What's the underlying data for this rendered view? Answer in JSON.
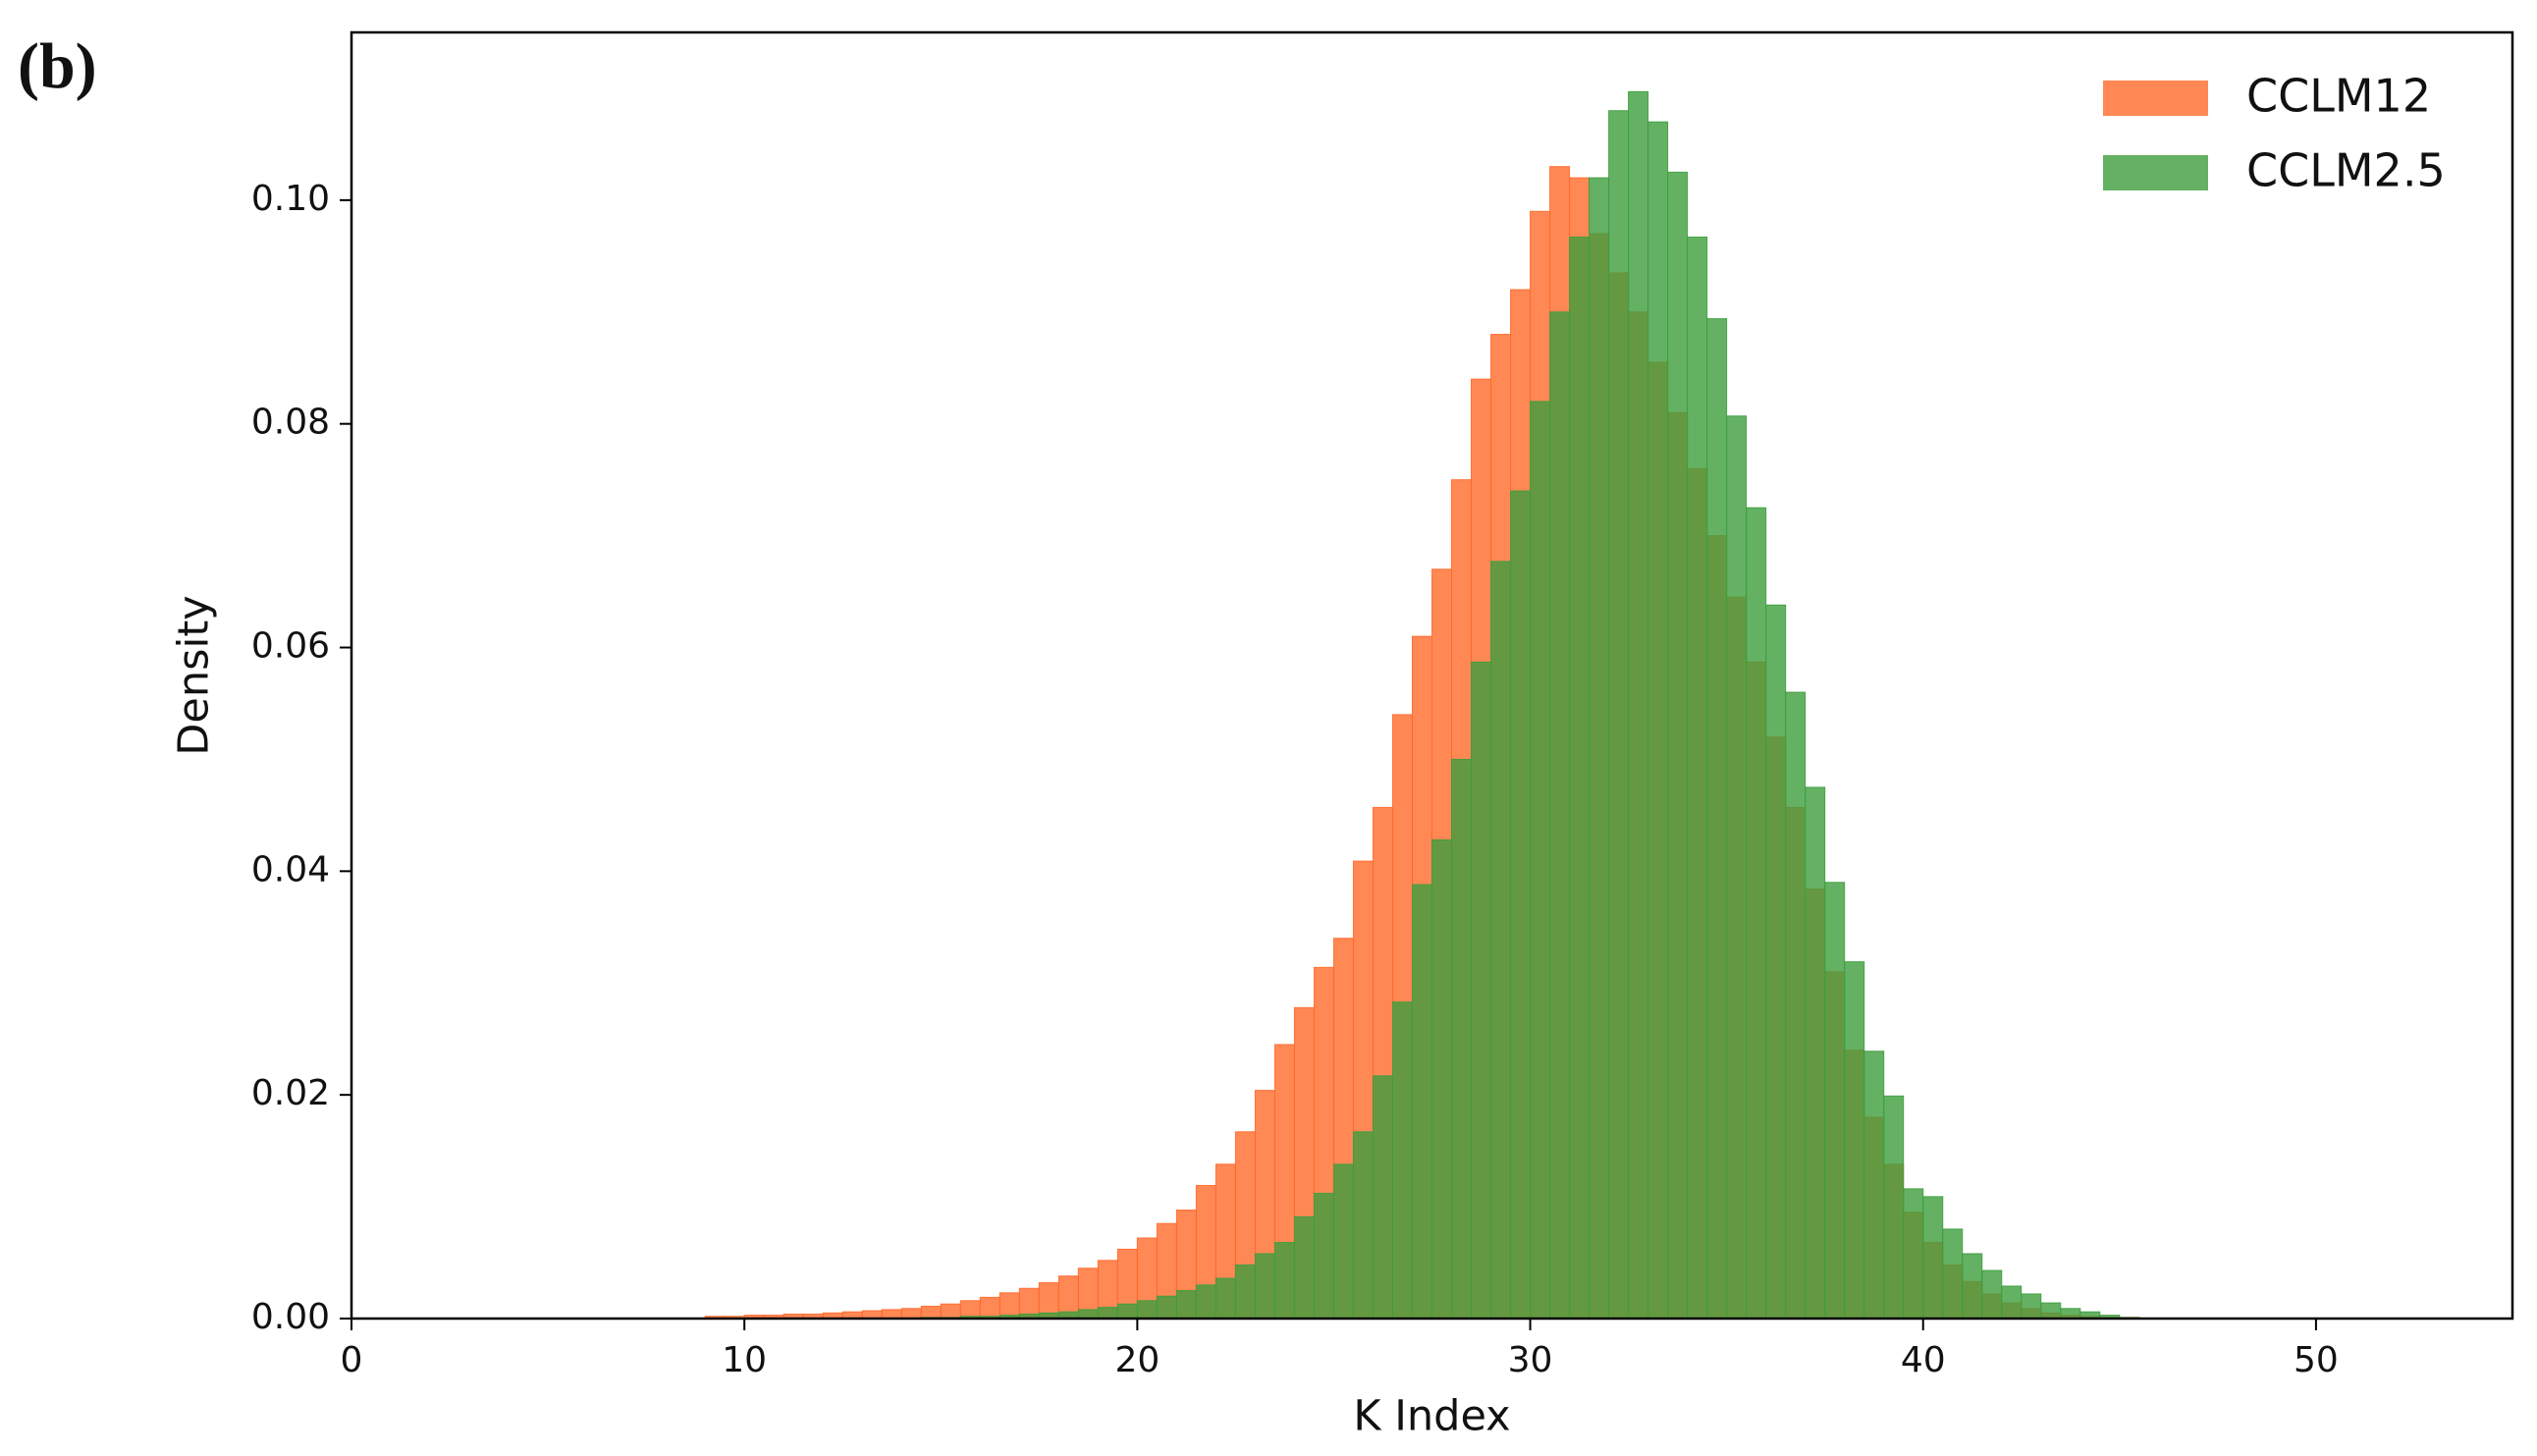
{
  "panel_label": "(b)",
  "chart_data": {
    "type": "histogram",
    "xlabel": "K Index",
    "ylabel": "Density",
    "xlim": [
      0,
      55
    ],
    "ylim": [
      0,
      0.115
    ],
    "xticks": [
      0,
      10,
      20,
      30,
      40,
      50
    ],
    "yticks": [
      {
        "value": 0,
        "label": "0.00"
      },
      {
        "value": 0.02,
        "label": "0.02"
      },
      {
        "value": 0.04,
        "label": "0.04"
      },
      {
        "value": 0.06,
        "label": "0.06"
      },
      {
        "value": 0.08,
        "label": "0.08"
      },
      {
        "value": 0.1,
        "label": "0.10"
      }
    ],
    "legend": "upper right",
    "bins": [
      9,
      9.5,
      10,
      10.5,
      11,
      11.5,
      12,
      12.5,
      13,
      13.5,
      14,
      14.5,
      15,
      15.5,
      16,
      16.5,
      17,
      17.5,
      18,
      18.5,
      19,
      19.5,
      20,
      20.5,
      21,
      21.5,
      22,
      22.5,
      23,
      23.5,
      24,
      24.5,
      25,
      25.5,
      26,
      26.5,
      27,
      27.5,
      28,
      28.5,
      29,
      29.5,
      30,
      30.5,
      31,
      31.5,
      32,
      32.5,
      33,
      33.5,
      34,
      34.5,
      35,
      35.5,
      36,
      36.5,
      37,
      37.5,
      38,
      38.5,
      39,
      39.5,
      40,
      40.5,
      41,
      41.5,
      42,
      42.5,
      43,
      43.5,
      44,
      44.5,
      45,
      45.5,
      46
    ],
    "series": [
      {
        "name": "CCLM12",
        "color": "#ff6a2b",
        "values": [
          0.0002,
          0.0002,
          0.0003,
          0.0003,
          0.0004,
          0.0004,
          0.0005,
          0.0006,
          0.0007,
          0.0008,
          0.0009,
          0.0011,
          0.0013,
          0.0016,
          0.0019,
          0.0023,
          0.0027,
          0.0032,
          0.0038,
          0.0045,
          0.0052,
          0.0062,
          0.0072,
          0.0085,
          0.0097,
          0.0119,
          0.0138,
          0.0167,
          0.0204,
          0.0245,
          0.0278,
          0.0314,
          0.034,
          0.0409,
          0.0457,
          0.054,
          0.061,
          0.067,
          0.075,
          0.084,
          0.088,
          0.092,
          0.099,
          0.103,
          0.102,
          0.097,
          0.0935,
          0.09,
          0.0855,
          0.081,
          0.076,
          0.07,
          0.0645,
          0.0587,
          0.052,
          0.0457,
          0.0384,
          0.031,
          0.024,
          0.018,
          0.0138,
          0.0095,
          0.0068,
          0.0048,
          0.0033,
          0.0022,
          0.0014,
          0.0009,
          0.0005,
          0.0003,
          0.0002,
          0.0001,
          0.0001,
          0
        ]
      },
      {
        "name": "CCLM2.5",
        "color": "#3d9e3d",
        "values": [
          0,
          0,
          0,
          0,
          0,
          0,
          0,
          0,
          0,
          0,
          0,
          0.0001,
          0.0001,
          0.0002,
          0.0002,
          0.0003,
          0.0004,
          0.0005,
          0.0006,
          0.0008,
          0.001,
          0.0013,
          0.0016,
          0.002,
          0.0025,
          0.003,
          0.0036,
          0.0048,
          0.0058,
          0.0068,
          0.0091,
          0.0112,
          0.0138,
          0.0167,
          0.0217,
          0.0283,
          0.0388,
          0.0428,
          0.05,
          0.0587,
          0.0677,
          0.074,
          0.082,
          0.09,
          0.0967,
          0.102,
          0.108,
          0.1097,
          0.107,
          0.1025,
          0.0967,
          0.0894,
          0.0807,
          0.0725,
          0.0638,
          0.056,
          0.0475,
          0.039,
          0.0319,
          0.0239,
          0.0199,
          0.0116,
          0.0109,
          0.008,
          0.0058,
          0.0043,
          0.0029,
          0.0022,
          0.0014,
          0.0009,
          0.0006,
          0.0003,
          0.0001,
          0
        ]
      }
    ]
  }
}
